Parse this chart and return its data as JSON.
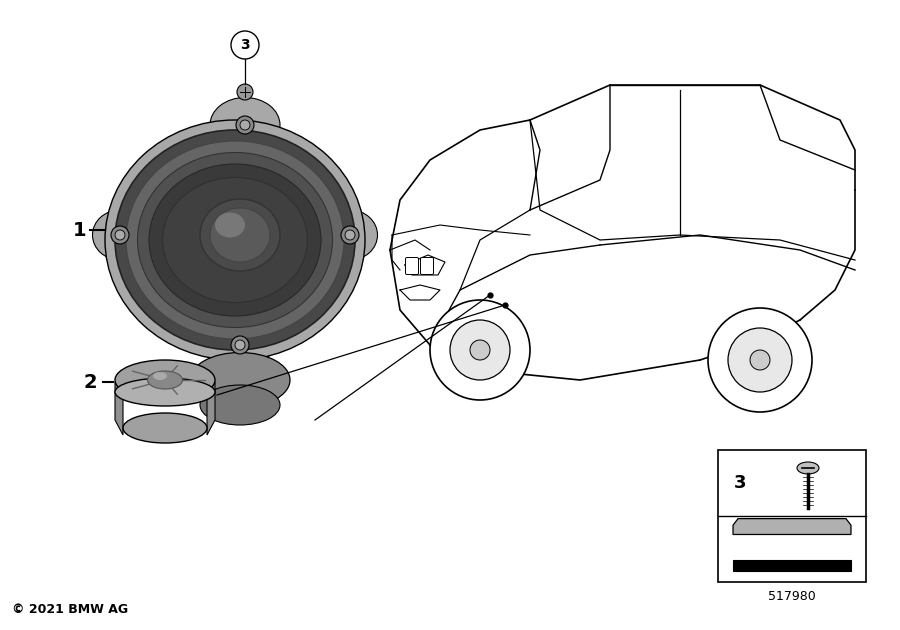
{
  "bg_color": "#ffffff",
  "label1": "1",
  "label2": "2",
  "label3": "3",
  "part_number": "517980",
  "copyright": "© 2021 BMW AG",
  "lc": "#000000",
  "gray1": "#b0b0b0",
  "gray2": "#888888",
  "gray3": "#555555",
  "gray4": "#333333",
  "gray5": "#aaaaaa",
  "gray6": "#cccccc",
  "gray7": "#777777",
  "gray8": "#999999",
  "gray9": "#444444",
  "darkgray": "#222222"
}
